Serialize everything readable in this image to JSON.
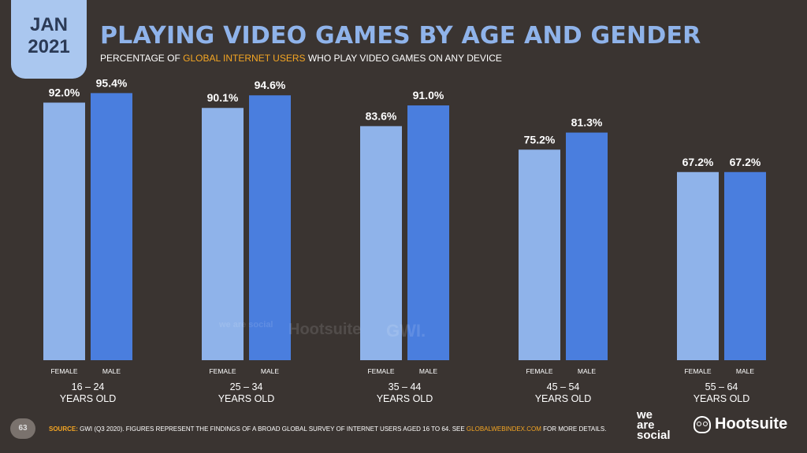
{
  "badge": {
    "month": "JAN",
    "year": "2021"
  },
  "header": {
    "title": "PLAYING VIDEO GAMES BY AGE AND GENDER",
    "subtitle_pre": "PERCENTAGE OF ",
    "subtitle_hl": "GLOBAL INTERNET USERS",
    "subtitle_post": " WHO PLAY VIDEO GAMES ON ANY DEVICE"
  },
  "chart_data": {
    "type": "bar",
    "categories": [
      "16 – 24\nYEARS OLD",
      "25 – 34\nYEARS OLD",
      "35 – 44\nYEARS OLD",
      "45 – 54\nYEARS OLD",
      "55 – 64\nYEARS OLD"
    ],
    "bar_labels": [
      "FEMALE",
      "MALE"
    ],
    "series": [
      {
        "name": "FEMALE",
        "values": [
          92.0,
          90.1,
          83.6,
          75.2,
          67.2
        ],
        "labels": [
          "92.0%",
          "90.1%",
          "83.6%",
          "75.2%",
          "67.2%"
        ],
        "color": "#8fb3ea"
      },
      {
        "name": "MALE",
        "values": [
          95.4,
          94.6,
          91.0,
          81.3,
          67.2
        ],
        "labels": [
          "95.4%",
          "94.6%",
          "91.0%",
          "81.3%",
          "67.2%"
        ],
        "color": "#4a7ede"
      }
    ],
    "ylim": [
      0,
      100
    ],
    "grid": false
  },
  "watermarks": {
    "was": "we are social",
    "hootsuite": "Hootsuite",
    "gwi": "GWI."
  },
  "footer": {
    "page": "63",
    "source_key": "SOURCE:",
    "source_text": " GWI (Q3 2020). FIGURES REPRESENT THE FINDINGS OF A BROAD GLOBAL SURVEY OF INTERNET USERS AGED 16 TO 64. SEE ",
    "source_link": "GLOBALWEBINDEX.COM",
    "source_end": " FOR MORE DETAILS."
  },
  "logos": {
    "was_1": "we",
    "was_2": "are",
    "was_3": "social",
    "hootsuite": "Hootsuite"
  }
}
